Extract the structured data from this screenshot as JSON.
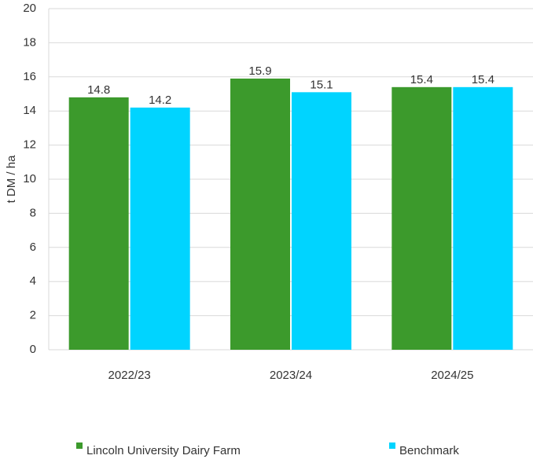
{
  "chart_data": {
    "type": "bar",
    "y_label": "t DM / ha",
    "categories": [
      "2022/23",
      "2023/24",
      "2024/25"
    ],
    "series": [
      {
        "name": "Lincoln University Dairy Farm",
        "color": "#3c9a2c",
        "values": [
          14.8,
          15.9,
          15.4
        ]
      },
      {
        "name": "Benchmark",
        "color": "#00d4ff",
        "values": [
          14.2,
          15.1,
          15.4
        ]
      }
    ],
    "ylim": [
      0,
      20
    ],
    "yticks": [
      0,
      2,
      4,
      6,
      8,
      10,
      12,
      14,
      16,
      18,
      20
    ],
    "grid": true,
    "legend": "bottom"
  }
}
